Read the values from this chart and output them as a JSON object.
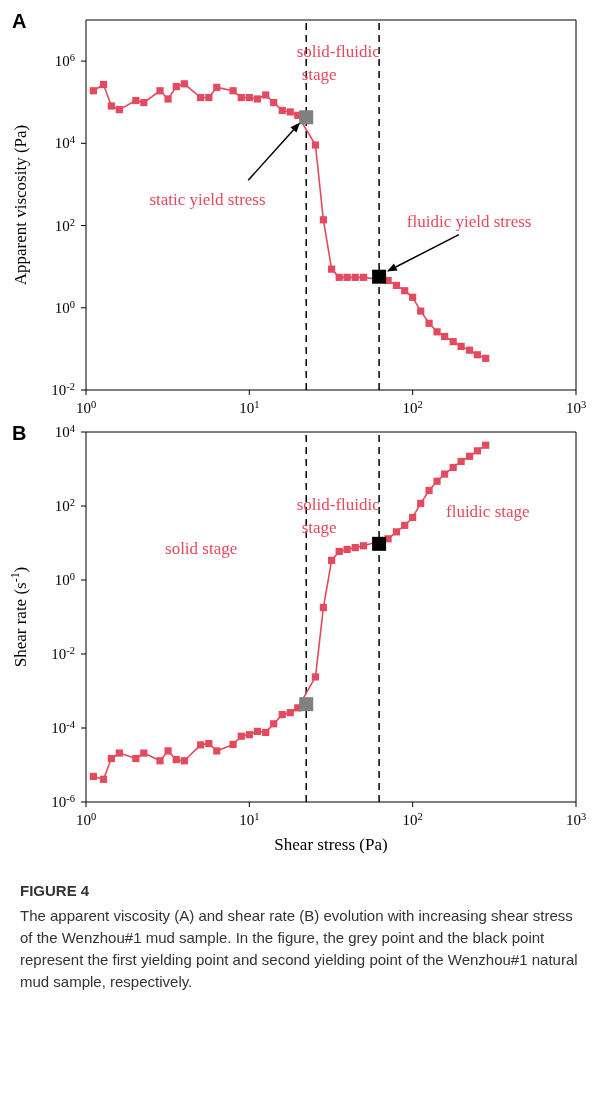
{
  "chart_data": [
    {
      "type": "line",
      "title": "A",
      "ylabel": "Apparent viscosity (Pa)",
      "log": "xy",
      "marker": "square",
      "line_style": "solid",
      "xlim": [
        1,
        1000
      ],
      "xticks": [
        {
          "value": 1,
          "label": "10$^{0}$"
        },
        {
          "value": 10,
          "label": "10$^{1}$"
        },
        {
          "value": 100,
          "label": "10$^{2}$"
        },
        {
          "value": 1000,
          "label": "10$^{3}$"
        }
      ],
      "ylim": [
        0.01,
        10000000
      ],
      "yticks": [
        {
          "value": 0.01,
          "label": "10$^{-2}$"
        },
        {
          "value": 1,
          "label": "10$^{0}$"
        },
        {
          "value": 100,
          "label": "10$^{2}$"
        },
        {
          "value": 10000,
          "label": "10$^{4}$"
        },
        {
          "value": 1000000,
          "label": "10$^{6}$"
        }
      ],
      "series": [
        {
          "type": "line",
          "color": "#e34a5e",
          "x": [
            1.11,
            1.28,
            1.43,
            1.6,
            2.02,
            2.26,
            2.84,
            3.18,
            3.57,
            4.0,
            5.03,
            5.65,
            6.32,
            7.95,
            8.93,
            10.0,
            11.2,
            12.6,
            14.1,
            15.9,
            17.8,
            19.8,
            25.4,
            28.4,
            31.9,
            35.5,
            39.7,
            44.5,
            50.0,
            70.7,
            79.5,
            89.4,
            100,
            112,
            126,
            141,
            157,
            177,
            198,
            223,
            249,
            280
          ],
          "values": [
            190000,
            270000,
            81000,
            66000,
            110000,
            98000,
            190000,
            120000,
            240000,
            280000,
            130000,
            130000,
            230000,
            190000,
            130000,
            130000,
            120000,
            150000,
            98000,
            63000,
            58000,
            48000,
            9100,
            138,
            8.7,
            5.5,
            5.5,
            5.5,
            5.5,
            4.6,
            3.5,
            2.6,
            1.8,
            0.83,
            0.42,
            0.26,
            0.2,
            0.15,
            0.115,
            0.093,
            0.072,
            0.059
          ]
        },
        {
          "type": "scatter",
          "color": "#808080",
          "x": [
            22.3
          ],
          "values": [
            43000
          ]
        },
        {
          "type": "scatter",
          "color": "#000000",
          "x": [
            62.3
          ],
          "values": [
            5.7
          ]
        }
      ],
      "ref_lines": [
        {
          "axis": "x",
          "value": 22.3,
          "color": "#000000",
          "line_style": "dashed"
        },
        {
          "axis": "x",
          "value": 62.3,
          "color": "#000000",
          "line_style": "dashed"
        }
      ],
      "annotations": [
        "static yield stress",
        "fluidic yield stress",
        "solid-fluidic stage"
      ]
    },
    {
      "type": "line",
      "title": "B",
      "xlabel": "Shear stress (Pa)",
      "ylabel": "Shear rate (s$^{-1}$)",
      "log": "xy",
      "marker": "square",
      "line_style": "solid",
      "xlim": [
        1,
        1000
      ],
      "xticks": [
        {
          "value": 1,
          "label": "10$^{0}$"
        },
        {
          "value": 10,
          "label": "10$^{1}$"
        },
        {
          "value": 100,
          "label": "10$^{2}$"
        },
        {
          "value": 1000,
          "label": "10$^{3}$"
        }
      ],
      "ylim": [
        1e-06,
        10000
      ],
      "yticks": [
        {
          "value": 1e-06,
          "label": "10$^{-6}$"
        },
        {
          "value": 0.0001,
          "label": "10$^{-4}$"
        },
        {
          "value": 0.01,
          "label": "10$^{-2}$"
        },
        {
          "value": 1,
          "label": "10$^{0}$"
        },
        {
          "value": 100,
          "label": "10$^{2}$"
        },
        {
          "value": 10000,
          "label": "10$^{4}$"
        }
      ],
      "series": [
        {
          "type": "line",
          "color": "#e34a5e",
          "x": [
            1.11,
            1.28,
            1.43,
            1.6,
            2.02,
            2.26,
            2.84,
            3.18,
            3.57,
            4.0,
            5.03,
            5.65,
            6.32,
            7.95,
            8.93,
            10.0,
            11.2,
            12.6,
            14.1,
            15.9,
            17.8,
            19.8,
            25.4,
            28.4,
            31.9,
            35.5,
            39.7,
            44.5,
            50.0,
            70.7,
            79.5,
            89.4,
            100,
            112,
            126,
            141,
            157,
            177,
            198,
            223,
            249,
            280
          ],
          "values": [
            4.9e-06,
            4.1e-06,
            1.5e-05,
            2.1e-05,
            1.5e-05,
            2.1e-05,
            1.3e-05,
            2.4e-05,
            1.4e-05,
            1.3e-05,
            3.5e-05,
            3.8e-05,
            2.4e-05,
            3.6e-05,
            6e-05,
            6.6e-05,
            8.1e-05,
            7.6e-05,
            0.00013,
            0.00023,
            0.00026,
            0.00035,
            0.0024,
            0.18,
            3.4,
            5.9,
            6.7,
            7.5,
            8.4,
            13,
            20,
            30,
            49,
            118,
            263,
            467,
            730,
            1100,
            1600,
            2200,
            3100,
            4400
          ]
        },
        {
          "type": "scatter",
          "color": "#808080",
          "x": [
            22.3
          ],
          "values": [
            0.00044
          ]
        },
        {
          "type": "scatter",
          "color": "#000000",
          "x": [
            62.3
          ],
          "values": [
            9.5
          ]
        }
      ],
      "ref_lines": [
        {
          "axis": "x",
          "value": 22.3,
          "color": "#000000",
          "line_style": "dashed"
        },
        {
          "axis": "x",
          "value": 62.3,
          "color": "#000000",
          "line_style": "dashed"
        }
      ],
      "annotations": [
        "solid-fluidic stage",
        "solid stage",
        "fluidic stage",
        "FIGURE 4",
        "The apparent viscosity (A) and shear rate (B) evolution with increasing shear stress of the Wenzhou#1 mud sample. In the figure, the grey point and the black point represent the first yielding point and second yielding point of the Wenzhou#1 natural mud sample, respectively."
      ]
    }
  ]
}
